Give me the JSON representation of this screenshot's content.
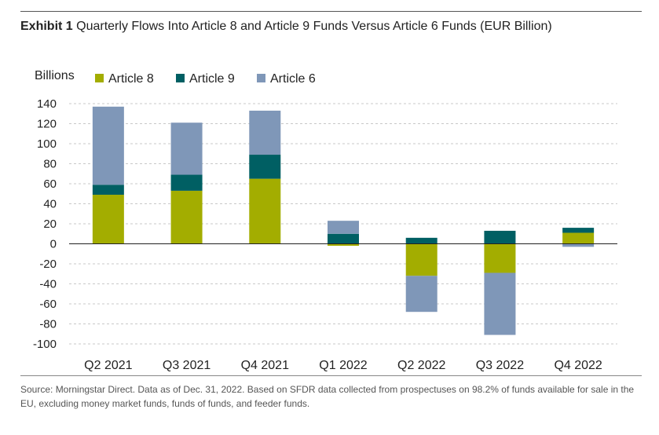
{
  "header": {
    "exhibit": "Exhibit 1",
    "title": "Quarterly Flows Into Article 8 and Article 9 Funds Versus Article 6 Funds (EUR Billion)"
  },
  "chart_data": {
    "type": "bar",
    "stacked": true,
    "ylabel": "Billions",
    "xlabel": "",
    "ylim": [
      -100,
      140
    ],
    "yticks": [
      140,
      120,
      100,
      80,
      60,
      40,
      20,
      0,
      -20,
      -40,
      -60,
      -80,
      -100
    ],
    "grid": true,
    "legend_position": "top-left",
    "categories": [
      "Q2 2021",
      "Q3 2021",
      "Q4 2021",
      "Q1 2022",
      "Q2 2022",
      "Q3 2022",
      "Q4 2022"
    ],
    "series": [
      {
        "name": "Article 8",
        "color": "#a3ad00",
        "values": [
          49,
          53,
          65,
          -2,
          -32,
          -29,
          11
        ]
      },
      {
        "name": "Article 9",
        "color": "#005f63",
        "values": [
          10,
          16,
          24,
          10,
          6,
          13,
          5
        ]
      },
      {
        "name": "Article 6",
        "color": "#7f97b8",
        "values": [
          78,
          52,
          44,
          13,
          -36,
          -62,
          -3
        ]
      }
    ]
  },
  "footer": {
    "source": "Source: Morningstar Direct. Data as of Dec. 31, 2022. Based on SFDR data collected from prospectuses on 98.2% of funds available for sale in the EU, excluding money market funds, funds of funds, and feeder funds."
  }
}
